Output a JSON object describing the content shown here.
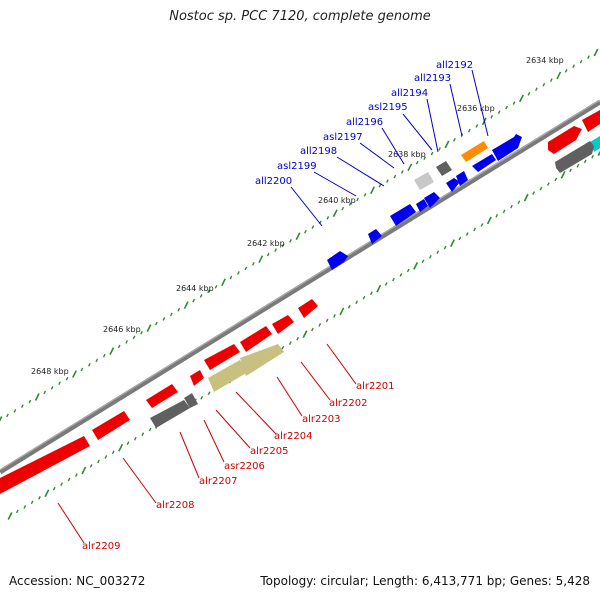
{
  "title": "Nostoc sp. PCC 7120, complete genome",
  "footer": {
    "accession": "Accession: NC_003272",
    "summary": "Topology: circular; Length: 6,413,771 bp; Genes: 5,428"
  },
  "colors": {
    "backbone": "#7f7f7f",
    "tick": "#2e8b2e",
    "forward_label": "#0000cc",
    "reverse_label": "#cc0000"
  },
  "kbp_labels": [
    "2634 kbp",
    "2636 kbp",
    "2638 kbp",
    "2640 kbp",
    "2642 kbp",
    "2644 kbp",
    "2646 kbp",
    "2648 kbp"
  ],
  "genes_top": [
    {
      "label": "all2192",
      "color": "#0000ee"
    },
    {
      "label": "all2193",
      "color": "#ff8c00"
    },
    {
      "label": "all2194",
      "color": "#606060"
    },
    {
      "label": "asl2195",
      "color": "#0000ee"
    },
    {
      "label": "all2196",
      "color": "#0000ee"
    },
    {
      "label": "asl2197",
      "color": "#c8c8c8"
    },
    {
      "label": "all2198",
      "color": "#0000ee"
    },
    {
      "label": "asl2199",
      "color": "#0000ee"
    },
    {
      "label": "all2200",
      "color": "#0000ee"
    }
  ],
  "genes_bottom": [
    {
      "label": "alr2201",
      "color": "#ee0000"
    },
    {
      "label": "alr2202",
      "color": "#ee0000"
    },
    {
      "label": "alr2203",
      "color": "#ee0000"
    },
    {
      "label": "alr2204",
      "color": "#ee0000"
    },
    {
      "label": "alr2205",
      "color": "#ee0000"
    },
    {
      "label": "asr2206",
      "color": "#ee0000"
    },
    {
      "label": "alr2207",
      "color": "#ee0000"
    },
    {
      "label": "alr2208",
      "color": "#ee0000"
    },
    {
      "label": "alr2209",
      "color": "#ee0000"
    }
  ]
}
